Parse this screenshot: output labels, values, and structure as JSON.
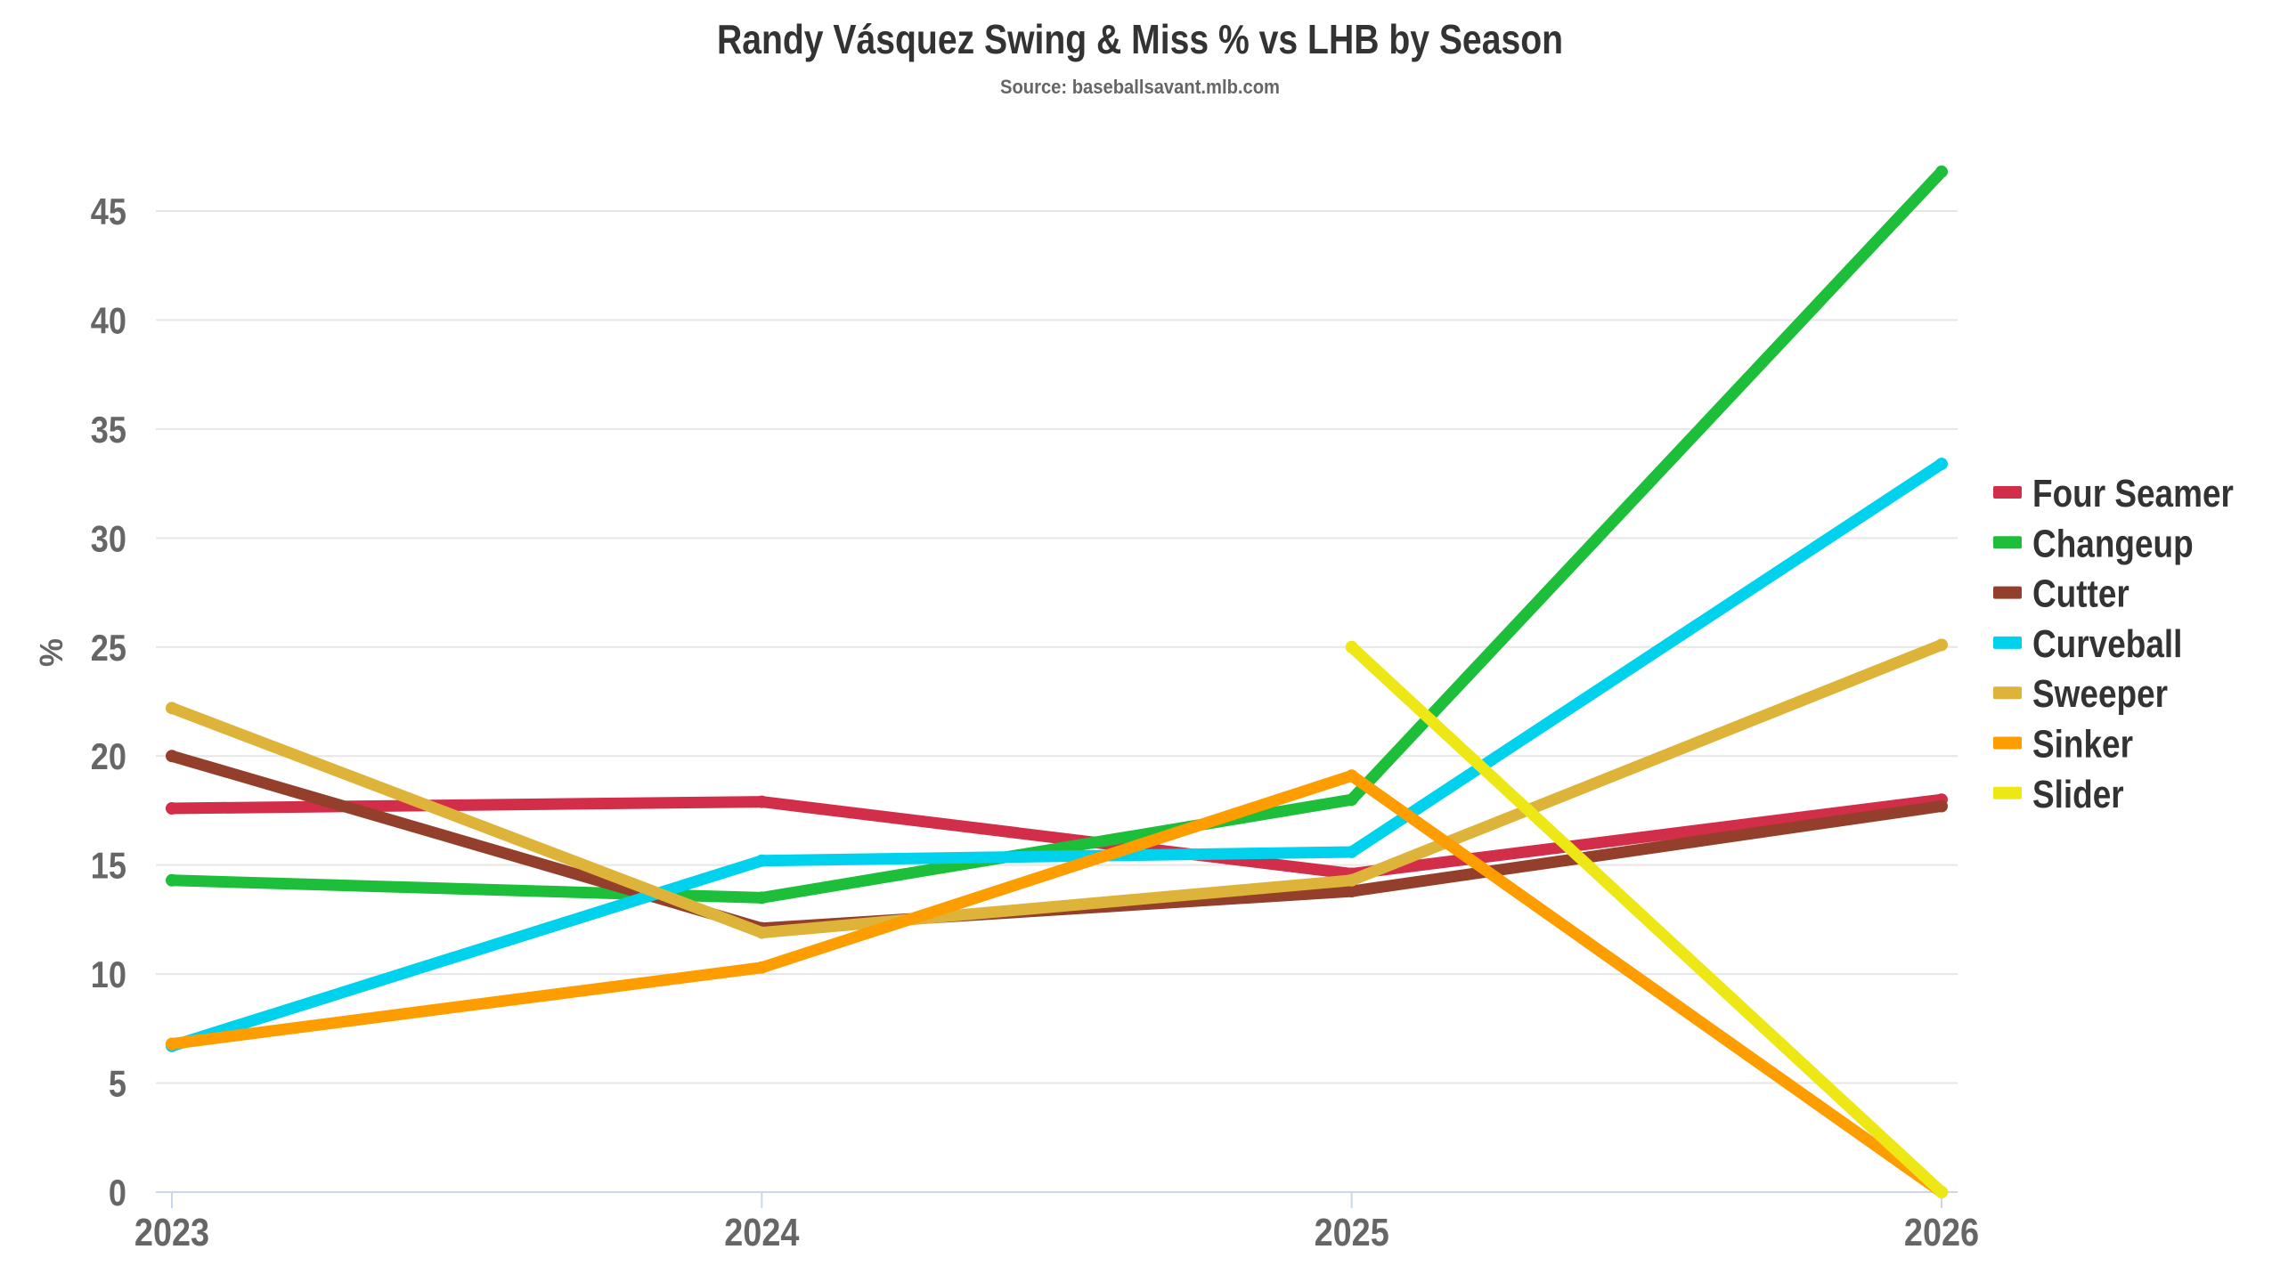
{
  "chart_data": {
    "type": "line",
    "title": "Randy Vásquez Swing & Miss % vs LHB by Season",
    "subtitle": "Source: baseballsavant.mlb.com",
    "xlabel": "",
    "ylabel": "%",
    "categories": [
      "2023",
      "2024",
      "2025",
      "2026"
    ],
    "ylim": [
      0,
      45
    ],
    "yticks": [
      "0",
      "5",
      "10",
      "15",
      "20",
      "25",
      "30",
      "35",
      "40",
      "45"
    ],
    "ytick_values": [
      0,
      5,
      10,
      15,
      20,
      25,
      30,
      35,
      40,
      45
    ],
    "grid": true,
    "legend_position": "right",
    "series": [
      {
        "name": "Four Seamer",
        "color": "#d22d49",
        "values": [
          17.6,
          17.9,
          14.6,
          18.0
        ]
      },
      {
        "name": "Changeup",
        "color": "#1dbe3a",
        "values": [
          14.3,
          13.5,
          18.0,
          46.8
        ]
      },
      {
        "name": "Cutter",
        "color": "#933f2c",
        "values": [
          20.0,
          12.1,
          13.8,
          17.7
        ]
      },
      {
        "name": "Curveball",
        "color": "#00d1ed",
        "values": [
          6.7,
          15.2,
          15.6,
          33.4
        ]
      },
      {
        "name": "Sweeper",
        "color": "#ddb33a",
        "values": [
          22.2,
          11.9,
          14.3,
          25.1
        ]
      },
      {
        "name": "Sinker",
        "color": "#fe9d00",
        "values": [
          6.8,
          10.3,
          19.1,
          0.0
        ]
      },
      {
        "name": "Slider",
        "color": "#eee716",
        "values": [
          null,
          null,
          25.0,
          0.0
        ]
      }
    ]
  }
}
